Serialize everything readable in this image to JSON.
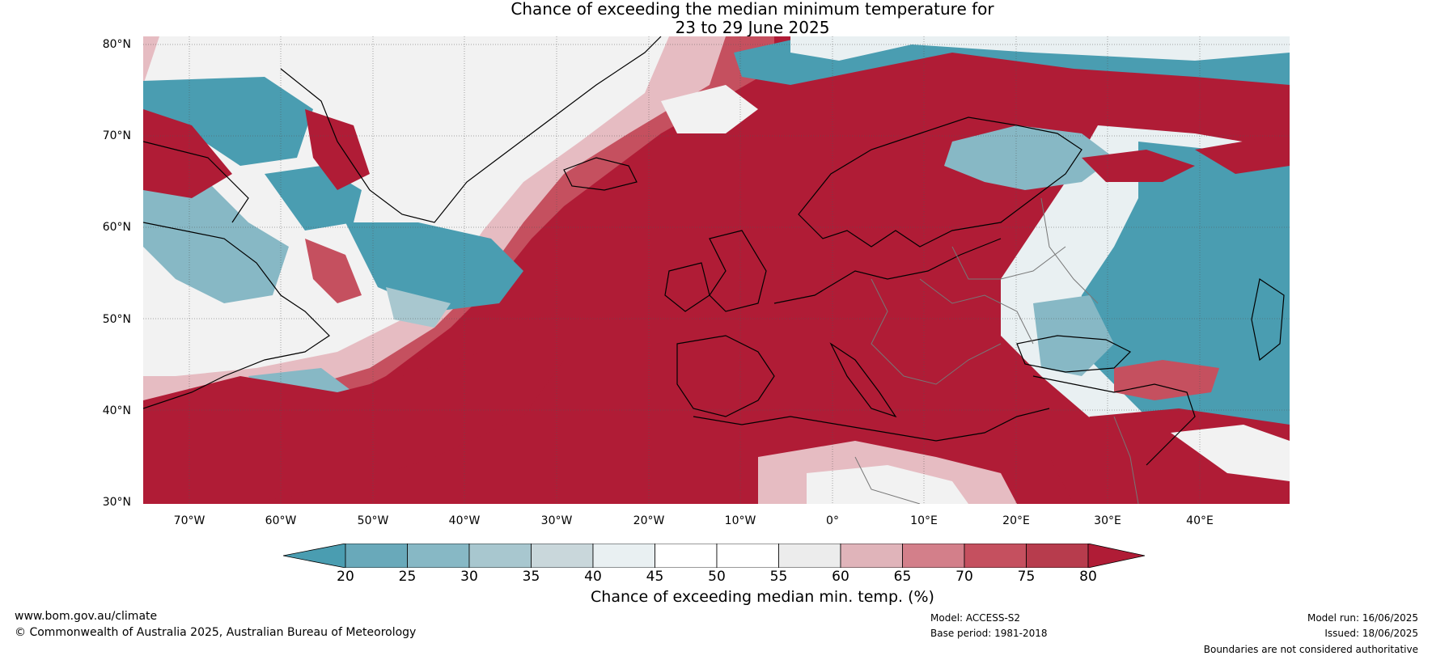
{
  "title": {
    "line1": "Chance of exceeding the median minimum temperature for",
    "line2": "23 to 29 June 2025"
  },
  "map": {
    "latitude_labels": [
      "80°N",
      "70°N",
      "60°N",
      "50°N",
      "40°N",
      "30°N"
    ],
    "longitude_labels": [
      "70°W",
      "60°W",
      "50°W",
      "40°W",
      "30°W",
      "20°W",
      "10°W",
      "0°",
      "10°E",
      "20°E",
      "30°E",
      "40°E"
    ],
    "colors": {
      "strong_above": "#b01c36",
      "above": "#c5505f",
      "mid": "#f2f2f2",
      "below": "#9fc4cf",
      "strong_below": "#4a9db1"
    }
  },
  "colorbar": {
    "ticks": [
      "20",
      "25",
      "30",
      "35",
      "40",
      "45",
      "50",
      "55",
      "60",
      "65",
      "70",
      "75",
      "80"
    ],
    "colors": [
      "#4a9db1",
      "#69a9ba",
      "#87b8c5",
      "#a8c7cf",
      "#c9d7db",
      "#e9f0f2",
      "#ffffff",
      "#ffffff",
      "#ececec",
      "#e0b4ba",
      "#d37f8a",
      "#c5505f",
      "#b73c4d",
      "#b01c36"
    ],
    "label": "Chance of exceeding median min. temp. (%)"
  },
  "footer": {
    "website": "www.bom.gov.au/climate",
    "copyright": "© Commonwealth of Australia 2025, Australian Bureau of Meteorology",
    "model": "Model: ACCESS-S2",
    "base_period": "Base period: 1981-2018",
    "model_run": "Model run: 16/06/2025",
    "issued": "Issued: 18/06/2025",
    "boundaries": "Boundaries are not considered authoritative"
  }
}
